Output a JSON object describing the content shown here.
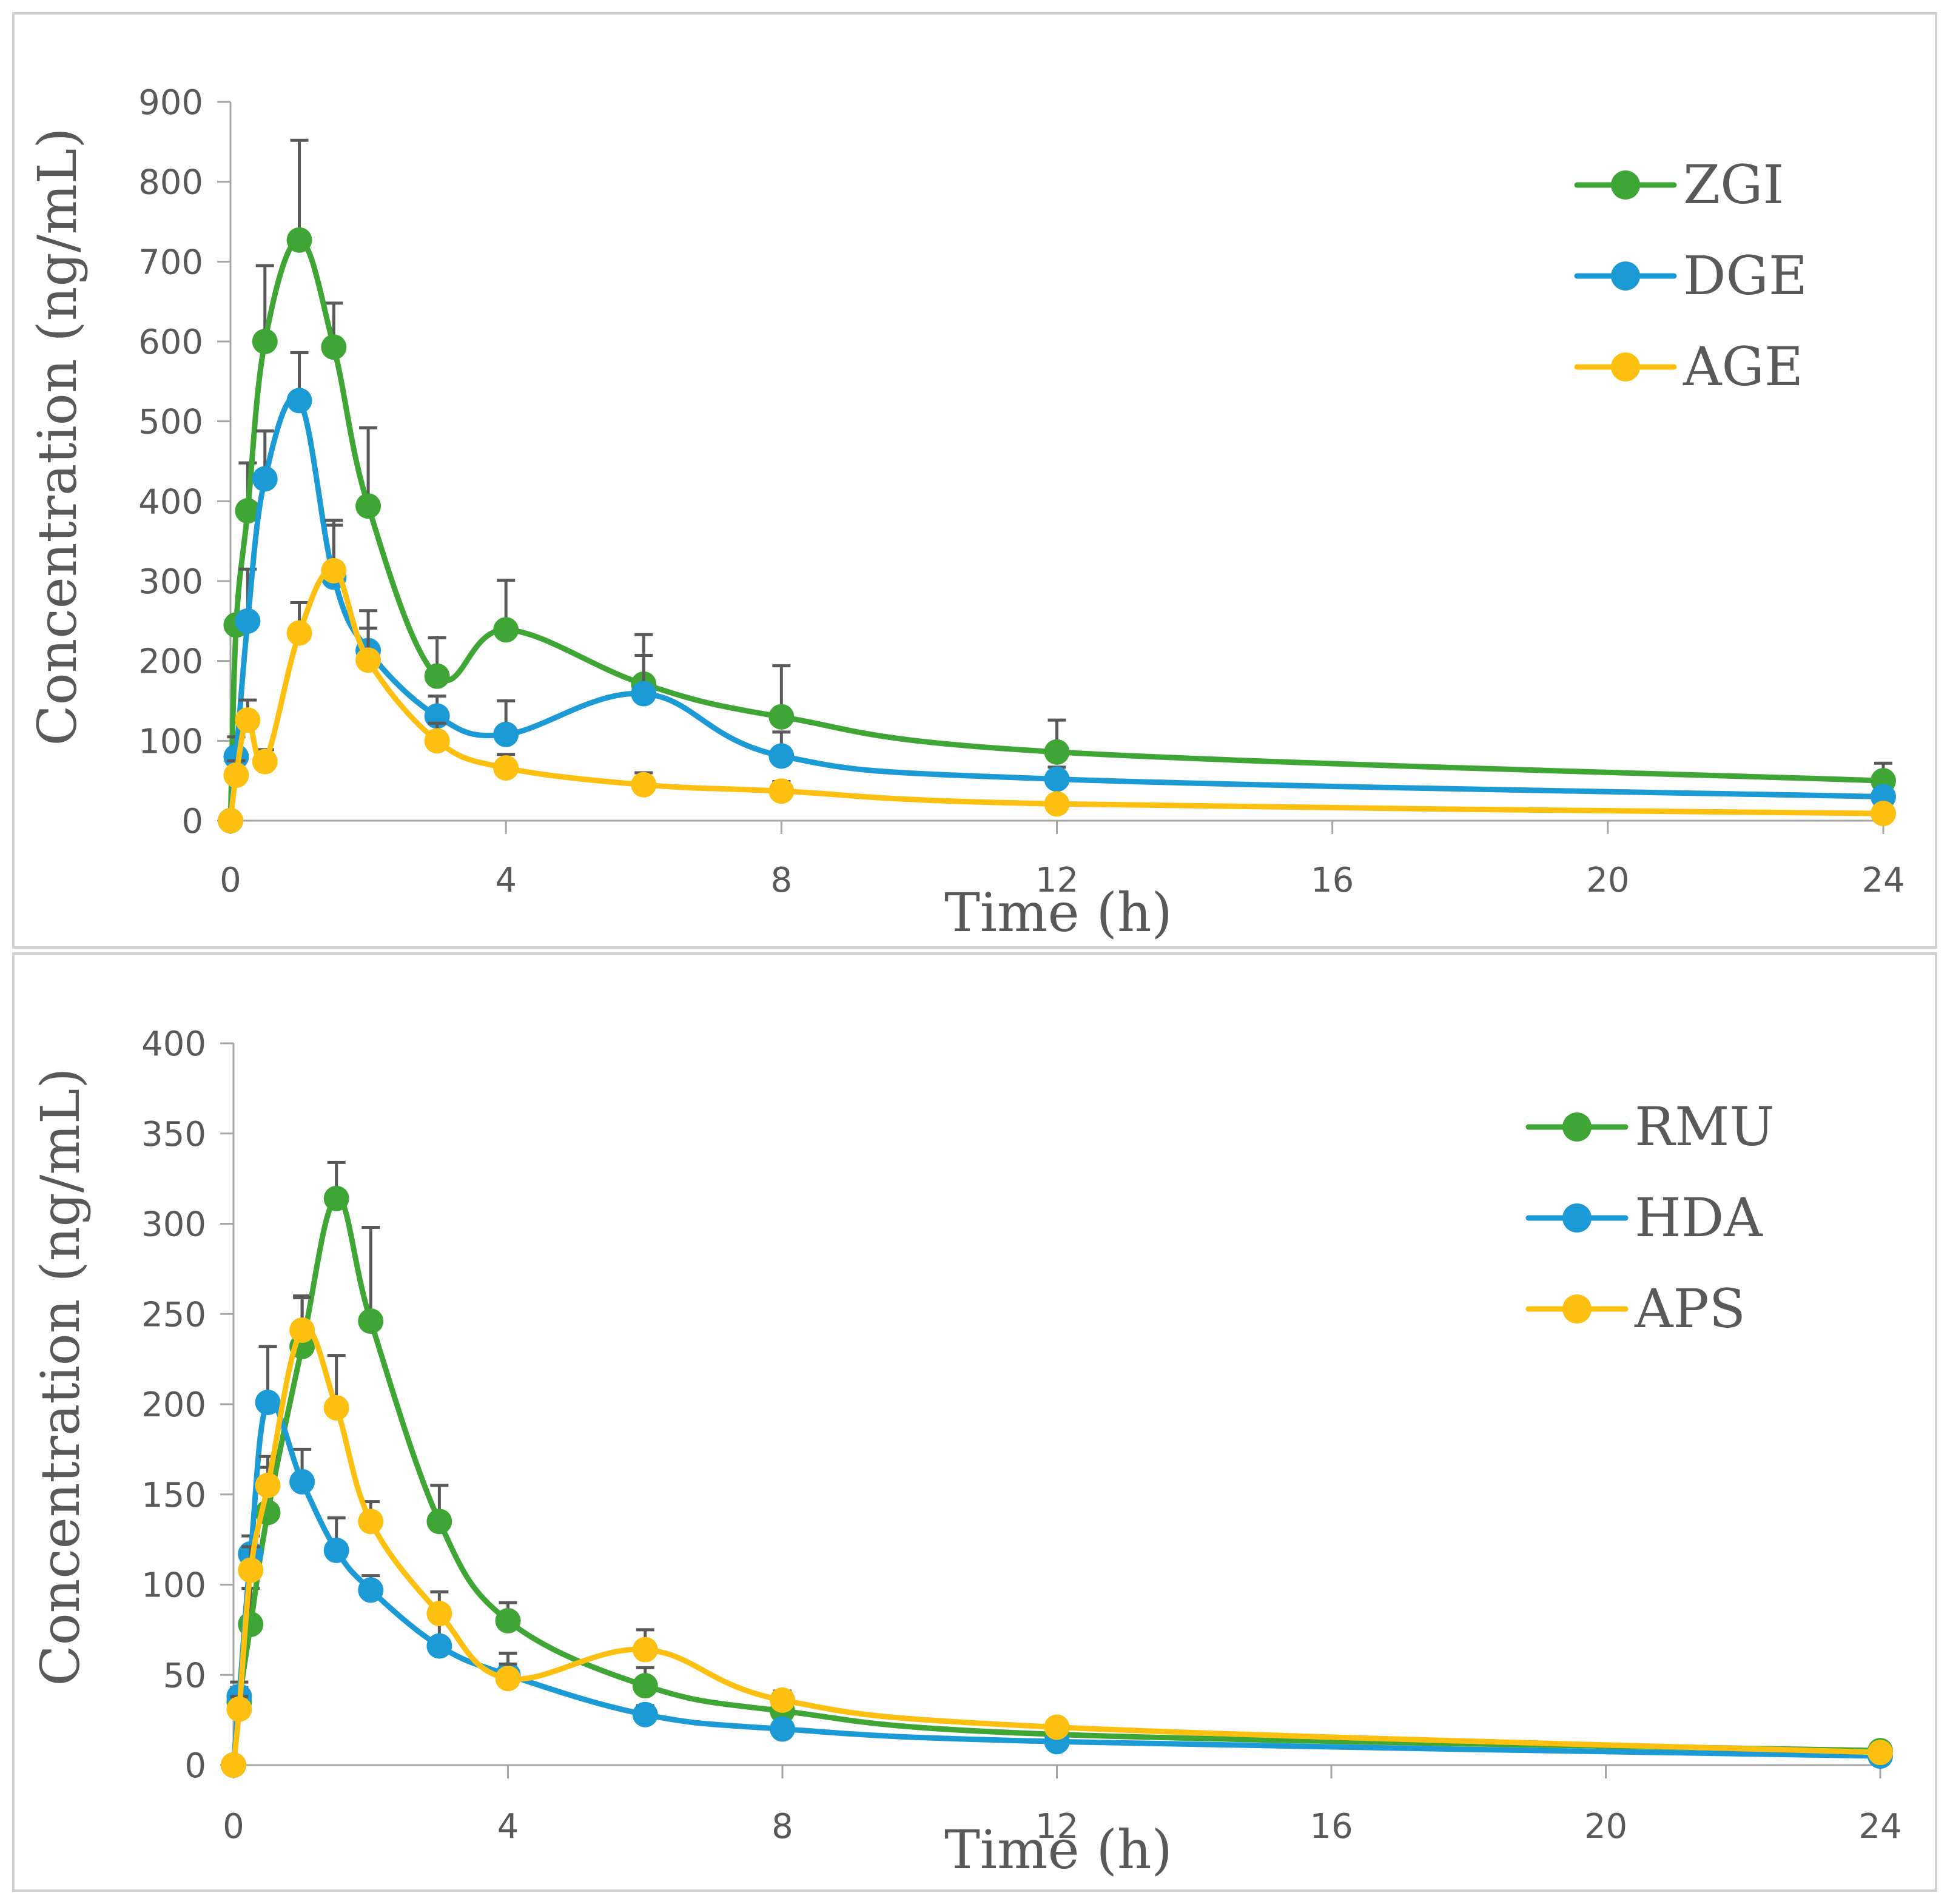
{
  "chart_data": [
    {
      "type": "line",
      "xlabel": "Time (h)",
      "ylabel": "Concentration (ng/mL)",
      "ylim": [
        0,
        900
      ],
      "yticks": [
        0,
        100,
        200,
        300,
        400,
        500,
        600,
        700,
        800,
        900
      ],
      "xlim": [
        0,
        24
      ],
      "xticks": [
        0,
        4,
        8,
        12,
        16,
        20,
        24
      ],
      "legend_position": "top-right",
      "series": [
        {
          "name": "ZGI",
          "color": "#3fa535",
          "x": [
            0,
            0.083,
            0.25,
            0.5,
            1,
            1.5,
            2,
            3,
            4,
            6,
            8,
            12,
            24
          ],
          "values": [
            0,
            245,
            388,
            600,
            727,
            593,
            394,
            181,
            239,
            171,
            130,
            86,
            50
          ],
          "err": [
            0,
            0,
            60,
            95,
            125,
            55,
            98,
            48,
            62,
            62,
            64,
            40,
            22
          ]
        },
        {
          "name": "DGE",
          "color": "#1b9ad6",
          "x": [
            0,
            0.083,
            0.25,
            0.5,
            1,
            1.5,
            2,
            3,
            4,
            6,
            8,
            12,
            24
          ],
          "values": [
            0,
            80,
            250,
            428,
            526,
            305,
            213,
            131,
            108,
            159,
            81,
            52,
            30
          ],
          "err": [
            0,
            25,
            65,
            60,
            60,
            65,
            50,
            25,
            42,
            48,
            30,
            15,
            10
          ]
        },
        {
          "name": "AGE",
          "color": "#fdc010",
          "x": [
            0,
            0.083,
            0.25,
            0.5,
            1,
            1.5,
            2,
            3,
            4,
            6,
            8,
            12,
            24
          ],
          "values": [
            0,
            57,
            126,
            74,
            235,
            313,
            201,
            100,
            66,
            45,
            37,
            21,
            9
          ],
          "err": [
            0,
            18,
            25,
            15,
            38,
            63,
            40,
            22,
            17,
            15,
            12,
            8,
            5
          ]
        }
      ]
    },
    {
      "type": "line",
      "xlabel": "Time (h)",
      "ylabel": "Concentration (ng/mL)",
      "ylim": [
        0,
        400
      ],
      "yticks": [
        0,
        50,
        100,
        150,
        200,
        250,
        300,
        350,
        400
      ],
      "xlim": [
        0,
        24
      ],
      "xticks": [
        0,
        4,
        8,
        12,
        16,
        20,
        24
      ],
      "legend_position": "top-right",
      "series": [
        {
          "name": "RMU",
          "color": "#3fa535",
          "x": [
            0,
            0.083,
            0.25,
            0.5,
            1,
            1.5,
            2,
            3,
            4,
            6,
            8,
            12,
            24
          ],
          "values": [
            0,
            35,
            78,
            140,
            232,
            314,
            246,
            135,
            80,
            44,
            30,
            17,
            8
          ],
          "err": [
            0,
            8,
            20,
            25,
            28,
            20,
            52,
            20,
            10,
            10,
            8,
            5,
            3
          ]
        },
        {
          "name": "HDA",
          "color": "#1b9ad6",
          "x": [
            0,
            0.083,
            0.25,
            0.5,
            1,
            1.5,
            2,
            3,
            4,
            6,
            8,
            12,
            24
          ],
          "values": [
            0,
            38,
            117,
            201,
            157,
            119,
            97,
            66,
            50,
            28,
            20,
            13,
            5
          ],
          "err": [
            0,
            8,
            10,
            31,
            18,
            18,
            8,
            18,
            12,
            5,
            4,
            3,
            2
          ]
        },
        {
          "name": "APS",
          "color": "#fdc010",
          "x": [
            0,
            0.083,
            0.25,
            0.5,
            1,
            1.5,
            2,
            3,
            4,
            6,
            8,
            12,
            24
          ],
          "values": [
            0,
            31,
            108,
            155,
            241,
            198,
            135,
            84,
            48,
            64,
            36,
            21,
            7
          ],
          "err": [
            0,
            7,
            13,
            16,
            18,
            29,
            11,
            12,
            8,
            11,
            5,
            4,
            2
          ]
        }
      ]
    }
  ]
}
